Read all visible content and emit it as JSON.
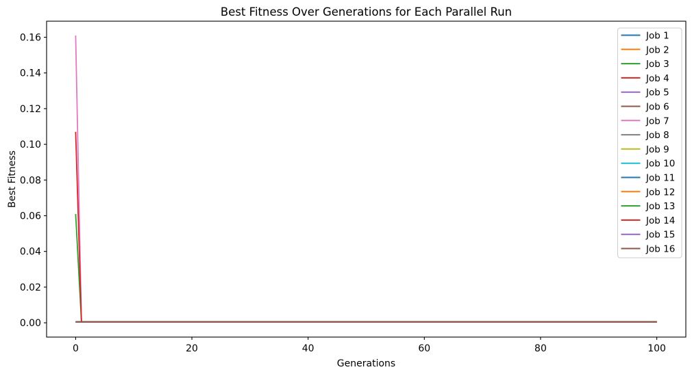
{
  "figure": {
    "background": "#ffffff",
    "axis_color": "#000000",
    "text_color": "#000000"
  },
  "chart_data": {
    "type": "line",
    "title": "Best Fitness Over Generations for Each Parallel Run",
    "xlabel": "Generations",
    "ylabel": "Best Fitness",
    "xlim": [
      -5,
      105
    ],
    "ylim": [
      -0.008,
      0.169
    ],
    "xtick_values": [
      0,
      20,
      40,
      60,
      80,
      100
    ],
    "xtick_labels": [
      "0",
      "20",
      "40",
      "60",
      "80",
      "100"
    ],
    "ytick_values": [
      0.0,
      0.02,
      0.04,
      0.06,
      0.08,
      0.1,
      0.12,
      0.14,
      0.16
    ],
    "ytick_labels": [
      "0.00",
      "0.02",
      "0.04",
      "0.06",
      "0.08",
      "0.10",
      "0.12",
      "0.14",
      "0.16"
    ],
    "grid": false,
    "legend": {
      "position": "upper right",
      "border_color": "#cccccc",
      "background": "#ffffff",
      "labels": [
        "Job 1",
        "Job 2",
        "Job 3",
        "Job 4",
        "Job 5",
        "Job 6",
        "Job 7",
        "Job 8",
        "Job 9",
        "Job 10",
        "Job 11",
        "Job 12",
        "Job 13",
        "Job 14",
        "Job 15",
        "Job 16"
      ]
    },
    "series": [
      {
        "name": "Job 1",
        "color": "#1f77b4",
        "x": [
          0,
          100
        ],
        "y": [
          0.0005,
          0.0005
        ]
      },
      {
        "name": "Job 2",
        "color": "#ff7f0e",
        "x": [
          0,
          100
        ],
        "y": [
          0.0005,
          0.0005
        ]
      },
      {
        "name": "Job 3",
        "color": "#2ca02c",
        "x": [
          0,
          100
        ],
        "y": [
          0.0005,
          0.0005
        ]
      },
      {
        "name": "Job 4",
        "color": "#d62728",
        "x": [
          0,
          100
        ],
        "y": [
          0.0005,
          0.0005
        ]
      },
      {
        "name": "Job 5",
        "color": "#9467bd",
        "x": [
          0,
          100
        ],
        "y": [
          0.0005,
          0.0005
        ]
      },
      {
        "name": "Job 6",
        "color": "#8c564b",
        "x": [
          0,
          100
        ],
        "y": [
          0.0005,
          0.0005
        ]
      },
      {
        "name": "Job 7",
        "color": "#e377c2",
        "x": [
          0,
          1,
          100
        ],
        "y": [
          0.161,
          0.0005,
          0.0005
        ]
      },
      {
        "name": "Job 8",
        "color": "#7f7f7f",
        "x": [
          0,
          100
        ],
        "y": [
          0.0005,
          0.0005
        ]
      },
      {
        "name": "Job 9",
        "color": "#bcbd22",
        "x": [
          0,
          100
        ],
        "y": [
          0.0005,
          0.0005
        ]
      },
      {
        "name": "Job 10",
        "color": "#17becf",
        "x": [
          0,
          100
        ],
        "y": [
          0.0005,
          0.0005
        ]
      },
      {
        "name": "Job 11",
        "color": "#1f77b4",
        "x": [
          0,
          100
        ],
        "y": [
          0.0005,
          0.0005
        ]
      },
      {
        "name": "Job 12",
        "color": "#ff7f0e",
        "x": [
          0,
          100
        ],
        "y": [
          0.0005,
          0.0005
        ]
      },
      {
        "name": "Job 13",
        "color": "#2ca02c",
        "x": [
          0,
          1,
          100
        ],
        "y": [
          0.061,
          0.0005,
          0.0005
        ]
      },
      {
        "name": "Job 14",
        "color": "#d62728",
        "x": [
          0,
          1,
          100
        ],
        "y": [
          0.107,
          0.0005,
          0.0005
        ]
      },
      {
        "name": "Job 15",
        "color": "#9467bd",
        "x": [
          0,
          100
        ],
        "y": [
          0.0005,
          0.0005
        ]
      },
      {
        "name": "Job 16",
        "color": "#8c564b",
        "x": [
          0,
          100
        ],
        "y": [
          0.0005,
          0.0005
        ]
      }
    ]
  }
}
